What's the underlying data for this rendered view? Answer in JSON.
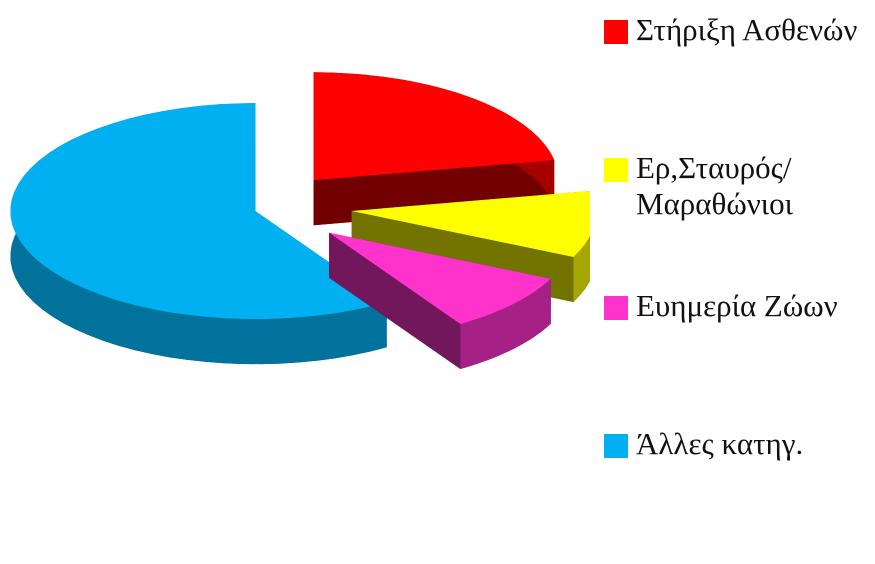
{
  "chart_data": {
    "type": "pie",
    "categories": [
      "Στήριξη Ασθενών",
      "Ερ,Σταυρός/ Μαραθώνιοι",
      "Ευημερία Ζώων",
      "Άλλες κατηγ."
    ],
    "values": [
      22,
      10,
      9,
      59
    ],
    "colors": [
      "#ff0000",
      "#ffff00",
      "#ff33cc",
      "#00b0f0"
    ],
    "legend": "right"
  }
}
